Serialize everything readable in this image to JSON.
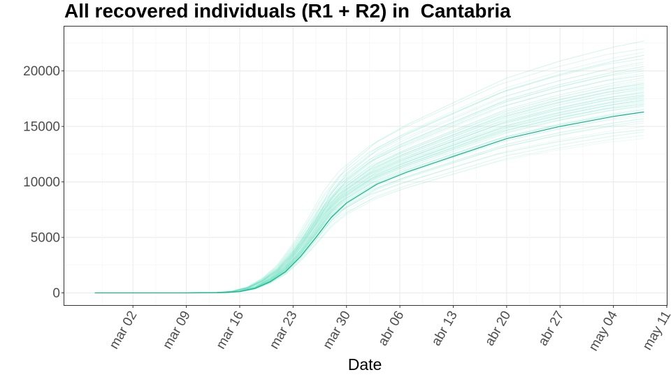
{
  "chart_data": {
    "type": "line",
    "title": "All recovered individuals (R1 + R2) in  Cantabria",
    "xlabel": "Date",
    "ylabel": "",
    "x_type": "date",
    "xlim": [
      "2020-02-22",
      "2020-05-11"
    ],
    "ylim": [
      -1100,
      24000
    ],
    "x_ticks": [
      {
        "date": "2020-03-02",
        "label": "mar 02"
      },
      {
        "date": "2020-03-09",
        "label": "mar 09"
      },
      {
        "date": "2020-03-16",
        "label": "mar 16"
      },
      {
        "date": "2020-03-23",
        "label": "mar 23"
      },
      {
        "date": "2020-03-30",
        "label": "mar 30"
      },
      {
        "date": "2020-04-06",
        "label": "abr 06"
      },
      {
        "date": "2020-04-13",
        "label": "abr 13"
      },
      {
        "date": "2020-04-20",
        "label": "abr 20"
      },
      {
        "date": "2020-04-27",
        "label": "abr 27"
      },
      {
        "date": "2020-05-04",
        "label": "may 04"
      },
      {
        "date": "2020-05-11",
        "label": "may 11"
      }
    ],
    "y_ticks": [
      0,
      5000,
      10000,
      15000,
      20000
    ],
    "grid": true,
    "legend": "none",
    "colors": {
      "main": "#13b28a",
      "ensemble": "#5fdcbb"
    },
    "main_series": {
      "x": [
        "2020-02-26",
        "2020-03-10",
        "2020-03-14",
        "2020-03-16",
        "2020-03-18",
        "2020-03-20",
        "2020-03-22",
        "2020-03-24",
        "2020-03-26",
        "2020-03-28",
        "2020-03-30",
        "2020-04-03",
        "2020-04-07",
        "2020-04-13",
        "2020-04-20",
        "2020-04-27",
        "2020-05-04",
        "2020-05-08"
      ],
      "y": [
        0,
        0,
        30,
        120,
        400,
        1000,
        1900,
        3300,
        5000,
        6800,
        8100,
        9800,
        10900,
        12300,
        13900,
        15000,
        15900,
        16300
      ]
    },
    "ensemble_final_values": [
      13900,
      14200,
      14500,
      14700,
      15000,
      15300,
      15500,
      15700,
      15900,
      16100,
      16300,
      16500,
      16600,
      16800,
      16900,
      17000,
      17100,
      17200,
      17300,
      17400,
      17500,
      17600,
      17700,
      17800,
      17900,
      18000,
      18100,
      18200,
      18300,
      18400,
      18500,
      18600,
      18700,
      18800,
      18900,
      19000,
      19200,
      19400,
      19600,
      19800,
      20000,
      20200,
      20400,
      20600,
      20800,
      21100,
      21400,
      21700,
      22000,
      22700
    ]
  }
}
